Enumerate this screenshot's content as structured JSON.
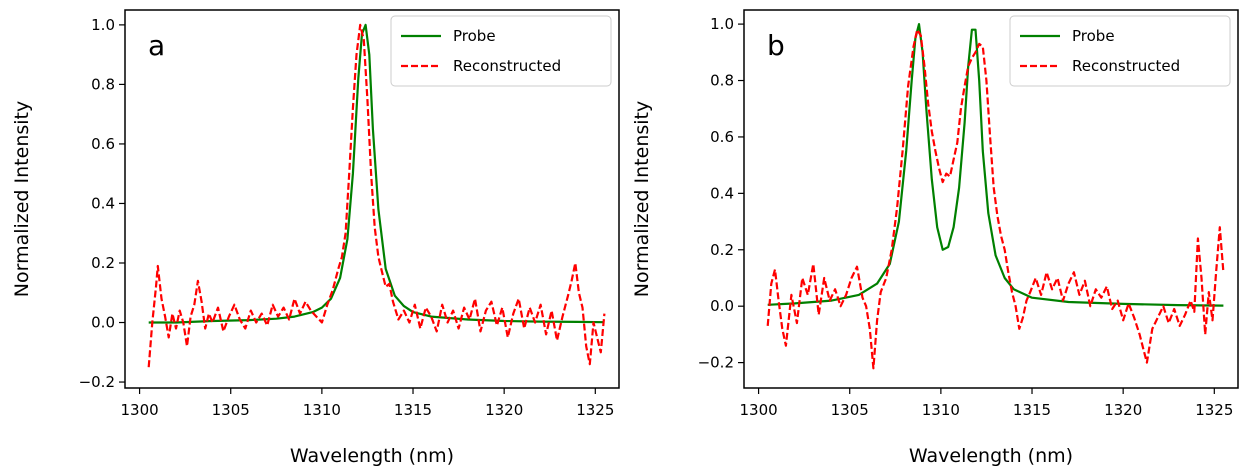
{
  "chart_data": [
    {
      "type": "line",
      "panel_label": "a",
      "xlabel": "Wavelength (nm)",
      "ylabel": "Normalized Intensity",
      "xlim": [
        1299.2,
        1326.3
      ],
      "ylim": [
        -0.22,
        1.05
      ],
      "xticks": [
        1300,
        1305,
        1310,
        1315,
        1320,
        1325
      ],
      "xtick_labels": [
        "1300",
        "1305",
        "1310",
        "1315",
        "1320",
        "1325"
      ],
      "yticks": [
        -0.2,
        0.0,
        0.2,
        0.4,
        0.6,
        0.8,
        1.0
      ],
      "ytick_labels": [
        "−0.2",
        "0.0",
        "0.2",
        "0.4",
        "0.6",
        "0.8",
        "1.0"
      ],
      "legend": {
        "position": "top-right"
      },
      "series": [
        {
          "name": "Probe",
          "style": "solid",
          "color": "#008000",
          "x": [
            1300.5,
            1302.0,
            1304.0,
            1306.0,
            1307.5,
            1308.5,
            1309.5,
            1310.0,
            1310.5,
            1311.0,
            1311.4,
            1311.7,
            1312.0,
            1312.2,
            1312.4,
            1312.6,
            1312.8,
            1313.1,
            1313.5,
            1314.0,
            1314.5,
            1315.0,
            1316.0,
            1318.0,
            1320.0,
            1322.0,
            1324.0,
            1325.5
          ],
          "y": [
            0.0,
            0.0,
            0.005,
            0.008,
            0.013,
            0.02,
            0.035,
            0.05,
            0.08,
            0.15,
            0.28,
            0.5,
            0.82,
            0.97,
            1.0,
            0.9,
            0.65,
            0.38,
            0.18,
            0.09,
            0.055,
            0.035,
            0.02,
            0.01,
            0.005,
            0.003,
            0.002,
            0.001
          ]
        },
        {
          "name": "Reconstructed",
          "style": "dashed",
          "color": "#ff0000",
          "x": [
            1300.5,
            1300.7,
            1300.9,
            1301.0,
            1301.2,
            1301.4,
            1301.6,
            1301.8,
            1302.0,
            1302.2,
            1302.4,
            1302.6,
            1302.8,
            1303.0,
            1303.2,
            1303.4,
            1303.6,
            1303.8,
            1304.0,
            1304.3,
            1304.6,
            1304.9,
            1305.2,
            1305.5,
            1305.8,
            1306.1,
            1306.4,
            1306.7,
            1307.0,
            1307.3,
            1307.6,
            1307.9,
            1308.2,
            1308.5,
            1308.8,
            1309.1,
            1309.4,
            1309.7,
            1310.0,
            1310.3,
            1310.6,
            1310.9,
            1311.1,
            1311.3,
            1311.5,
            1311.7,
            1311.9,
            1312.1,
            1312.3,
            1312.5,
            1312.7,
            1312.9,
            1313.1,
            1313.3,
            1313.5,
            1313.7,
            1313.9,
            1314.2,
            1314.5,
            1314.8,
            1315.1,
            1315.4,
            1315.7,
            1316.0,
            1316.3,
            1316.6,
            1316.9,
            1317.2,
            1317.5,
            1317.8,
            1318.1,
            1318.4,
            1318.7,
            1319.0,
            1319.3,
            1319.6,
            1319.9,
            1320.2,
            1320.5,
            1320.8,
            1321.1,
            1321.4,
            1321.7,
            1322.0,
            1322.3,
            1322.6,
            1322.9,
            1323.2,
            1323.5,
            1323.7,
            1323.9,
            1324.1,
            1324.3,
            1324.5,
            1324.7,
            1324.9,
            1325.1,
            1325.3,
            1325.5
          ],
          "y": [
            -0.15,
            0.0,
            0.12,
            0.19,
            0.08,
            0.02,
            -0.05,
            0.03,
            -0.02,
            0.04,
            0.0,
            -0.08,
            0.02,
            0.06,
            0.14,
            0.07,
            -0.02,
            0.03,
            0.0,
            0.05,
            -0.03,
            0.02,
            0.06,
            0.01,
            -0.02,
            0.04,
            0.0,
            0.03,
            -0.01,
            0.06,
            0.02,
            0.05,
            0.01,
            0.08,
            0.03,
            0.07,
            0.04,
            0.02,
            0.0,
            0.06,
            0.11,
            0.18,
            0.22,
            0.3,
            0.5,
            0.72,
            0.9,
            1.0,
            0.95,
            0.75,
            0.5,
            0.32,
            0.22,
            0.17,
            0.12,
            0.13,
            0.07,
            0.01,
            0.04,
            0.0,
            0.06,
            -0.02,
            0.05,
            0.02,
            -0.03,
            0.06,
            0.0,
            0.04,
            -0.02,
            0.05,
            0.01,
            0.08,
            -0.03,
            0.04,
            0.07,
            -0.01,
            0.05,
            -0.05,
            0.03,
            0.08,
            -0.02,
            0.05,
            0.0,
            0.06,
            -0.04,
            0.04,
            -0.06,
            0.02,
            0.09,
            0.14,
            0.2,
            0.1,
            0.05,
            -0.08,
            -0.14,
            0.0,
            -0.05,
            -0.1,
            0.03
          ]
        }
      ]
    },
    {
      "type": "line",
      "panel_label": "b",
      "xlabel": "Wavelength (nm)",
      "ylabel": "Normalized Intensity",
      "xlim": [
        1299.2,
        1326.3
      ],
      "ylim": [
        -0.29,
        1.05
      ],
      "xticks": [
        1300,
        1305,
        1310,
        1315,
        1320,
        1325
      ],
      "xtick_labels": [
        "1300",
        "1305",
        "1310",
        "1315",
        "1320",
        "1325"
      ],
      "yticks": [
        -0.2,
        0.0,
        0.2,
        0.4,
        0.6,
        0.8,
        1.0
      ],
      "ytick_labels": [
        "−0.2",
        "0.0",
        "0.2",
        "0.4",
        "0.6",
        "0.8",
        "1.0"
      ],
      "legend": {
        "position": "top-right"
      },
      "series": [
        {
          "name": "Probe",
          "style": "solid",
          "color": "#008000",
          "x": [
            1300.5,
            1302.0,
            1304.0,
            1305.5,
            1306.5,
            1307.2,
            1307.7,
            1308.1,
            1308.4,
            1308.6,
            1308.8,
            1309.0,
            1309.2,
            1309.5,
            1309.8,
            1310.1,
            1310.4,
            1310.7,
            1311.0,
            1311.3,
            1311.5,
            1311.7,
            1311.9,
            1312.1,
            1312.3,
            1312.6,
            1313.0,
            1313.5,
            1314.0,
            1315.0,
            1317.0,
            1320.0,
            1323.0,
            1325.5
          ],
          "y": [
            0.005,
            0.01,
            0.02,
            0.04,
            0.08,
            0.15,
            0.3,
            0.55,
            0.8,
            0.95,
            1.0,
            0.9,
            0.7,
            0.45,
            0.28,
            0.2,
            0.21,
            0.28,
            0.42,
            0.65,
            0.85,
            0.98,
            0.98,
            0.8,
            0.55,
            0.33,
            0.18,
            0.1,
            0.06,
            0.03,
            0.015,
            0.008,
            0.004,
            0.002
          ]
        },
        {
          "name": "Reconstructed",
          "style": "dashed",
          "color": "#ff0000",
          "x": [
            1300.5,
            1300.7,
            1300.9,
            1301.1,
            1301.3,
            1301.5,
            1301.8,
            1302.1,
            1302.4,
            1302.7,
            1303.0,
            1303.3,
            1303.6,
            1303.9,
            1304.2,
            1304.5,
            1304.8,
            1305.1,
            1305.4,
            1305.7,
            1305.9,
            1306.1,
            1306.3,
            1306.5,
            1306.7,
            1307.0,
            1307.3,
            1307.6,
            1307.9,
            1308.2,
            1308.5,
            1308.7,
            1308.9,
            1309.1,
            1309.3,
            1309.5,
            1309.7,
            1309.9,
            1310.1,
            1310.3,
            1310.5,
            1310.7,
            1310.9,
            1311.1,
            1311.3,
            1311.5,
            1311.7,
            1311.9,
            1312.1,
            1312.3,
            1312.5,
            1312.7,
            1312.9,
            1313.1,
            1313.3,
            1313.5,
            1313.7,
            1313.9,
            1314.1,
            1314.3,
            1314.5,
            1314.7,
            1314.9,
            1315.2,
            1315.5,
            1315.8,
            1316.1,
            1316.4,
            1316.7,
            1317.0,
            1317.3,
            1317.6,
            1317.9,
            1318.2,
            1318.5,
            1318.8,
            1319.1,
            1319.4,
            1319.7,
            1320.0,
            1320.3,
            1320.6,
            1320.9,
            1321.1,
            1321.3,
            1321.6,
            1321.9,
            1322.2,
            1322.5,
            1322.8,
            1323.1,
            1323.4,
            1323.7,
            1323.9,
            1324.1,
            1324.3,
            1324.5,
            1324.7,
            1324.9,
            1325.1,
            1325.3,
            1325.5
          ],
          "y": [
            -0.07,
            0.08,
            0.13,
            0.02,
            -0.08,
            -0.14,
            0.04,
            -0.06,
            0.1,
            0.04,
            0.15,
            -0.03,
            0.1,
            0.02,
            0.06,
            0.0,
            0.04,
            0.1,
            0.14,
            0.03,
            0.0,
            -0.08,
            -0.22,
            -0.05,
            0.05,
            0.1,
            0.2,
            0.35,
            0.55,
            0.78,
            0.92,
            0.98,
            0.96,
            0.85,
            0.72,
            0.62,
            0.55,
            0.49,
            0.44,
            0.47,
            0.46,
            0.52,
            0.58,
            0.7,
            0.78,
            0.85,
            0.88,
            0.9,
            0.93,
            0.92,
            0.8,
            0.6,
            0.42,
            0.32,
            0.25,
            0.2,
            0.12,
            0.05,
            0.0,
            -0.08,
            -0.04,
            0.02,
            0.05,
            0.1,
            0.04,
            0.12,
            0.06,
            0.1,
            0.02,
            0.08,
            0.12,
            0.04,
            0.09,
            0.0,
            0.06,
            0.03,
            0.07,
            -0.01,
            0.02,
            -0.05,
            0.01,
            -0.04,
            -0.1,
            -0.15,
            -0.2,
            -0.08,
            -0.04,
            0.0,
            -0.06,
            -0.01,
            -0.07,
            -0.03,
            0.02,
            -0.02,
            0.24,
            0.1,
            -0.1,
            0.05,
            -0.05,
            0.12,
            0.28,
            0.12
          ]
        }
      ]
    }
  ]
}
